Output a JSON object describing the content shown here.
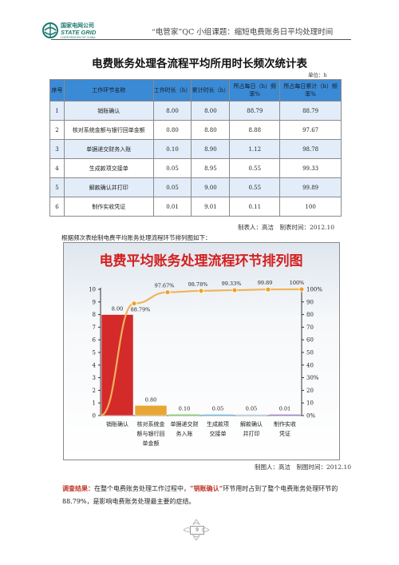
{
  "header": {
    "logo_cn": "国家电网公司",
    "logo_en": "STATE GRID",
    "logo_sub": "CORPORATION OF CHINA",
    "title": "“电管家”QC 小组课题：缩短电费账务日平均处理时间"
  },
  "doc_title": "电费账务处理各流程平均所用时长频次统计表",
  "unit_note": "单位：h",
  "table": {
    "headers": [
      "序号",
      "工作环节名称",
      "工作时长（h）",
      "累计时长（h）",
      "所占每日（h）频率%",
      "所占每日累计（h）频率%"
    ],
    "rows": [
      [
        "1",
        "销账确认",
        "8.00",
        "8.00",
        "88.79",
        "88.79"
      ],
      [
        "2",
        "核对系统金额与银行回单金额",
        "0.80",
        "8.80",
        "8.88",
        "97.67"
      ],
      [
        "3",
        "单据递交财务入账",
        "0.10",
        "8.90",
        "1.12",
        "98.78"
      ],
      [
        "4",
        "生成款项交接单",
        "0.05",
        "8.95",
        "0.55",
        "99.33"
      ],
      [
        "5",
        "解款确认并打印",
        "0.05",
        "9.00",
        "0.55",
        "99.89"
      ],
      [
        "6",
        "制作实收凭证",
        "0.01",
        "9.01",
        "0.11",
        "100"
      ]
    ],
    "footer": "制表人：高洁　制表时间：2012.10"
  },
  "chart_intro": "根据频次表绘制电费平均账务处理流程环节排列图如下：",
  "chart_data": {
    "type": "bar",
    "title": "电费平均账务处理流程环节排列图",
    "categories": [
      "销账确认",
      "核对系统金额与银行回单金额",
      "单据递交财务入账",
      "生成款项交接单",
      "解款确认并打印",
      "制作实收凭证"
    ],
    "category_lines": [
      [
        "销账确认"
      ],
      [
        "核对系统金",
        "额与银行回",
        "单金额"
      ],
      [
        "单据递交财",
        "务入账"
      ],
      [
        "生成款项",
        "交接单"
      ],
      [
        "解款确认",
        "并打印"
      ],
      [
        "制作实收",
        "凭证"
      ]
    ],
    "values": [
      8.0,
      0.8,
      0.1,
      0.05,
      0.05,
      0.01
    ],
    "value_labels": [
      "8.00",
      "0.80",
      "0.10",
      "0.05",
      "0.05",
      "0.01"
    ],
    "cumulative_percent": [
      88.79,
      97.67,
      98.78,
      99.33,
      99.89,
      100
    ],
    "cumulative_labels": [
      "88.79%",
      "97.67%",
      "98.78%",
      "99.33%",
      "99.89",
      "100%"
    ],
    "left_axis": {
      "min": 0,
      "max": 10,
      "ticks": [
        "0",
        "1",
        "2",
        "3",
        "4",
        "5",
        "6",
        "7",
        "8",
        "9",
        "10"
      ]
    },
    "right_axis": {
      "min": 0,
      "max": 100,
      "ticks": [
        "0%",
        "10",
        "20",
        "30%",
        "40",
        "50",
        "60",
        "70",
        "80",
        "90",
        "100%"
      ]
    },
    "bar_colors": [
      "#d42a2a",
      "#e8a735",
      "#6fbf4a",
      "#4aa6d9",
      "#a8c4e0",
      "#8a5cc2"
    ],
    "line_color": "#f0b45a",
    "marker_color": "#f0a020",
    "title_color": "#d42020",
    "grid": false
  },
  "chart_footer": "制图人：高洁　制图时间：2012.10",
  "conclusion": {
    "lead": "调查结果：",
    "text1": "在整个电费账务处理工作过程中，",
    "highlight": "“销账确认”",
    "text2": "环节用时占到了整个电费账务处理环节的 88.79%，是影响电费账务处理最主要的症结。"
  },
  "page_number": "9"
}
